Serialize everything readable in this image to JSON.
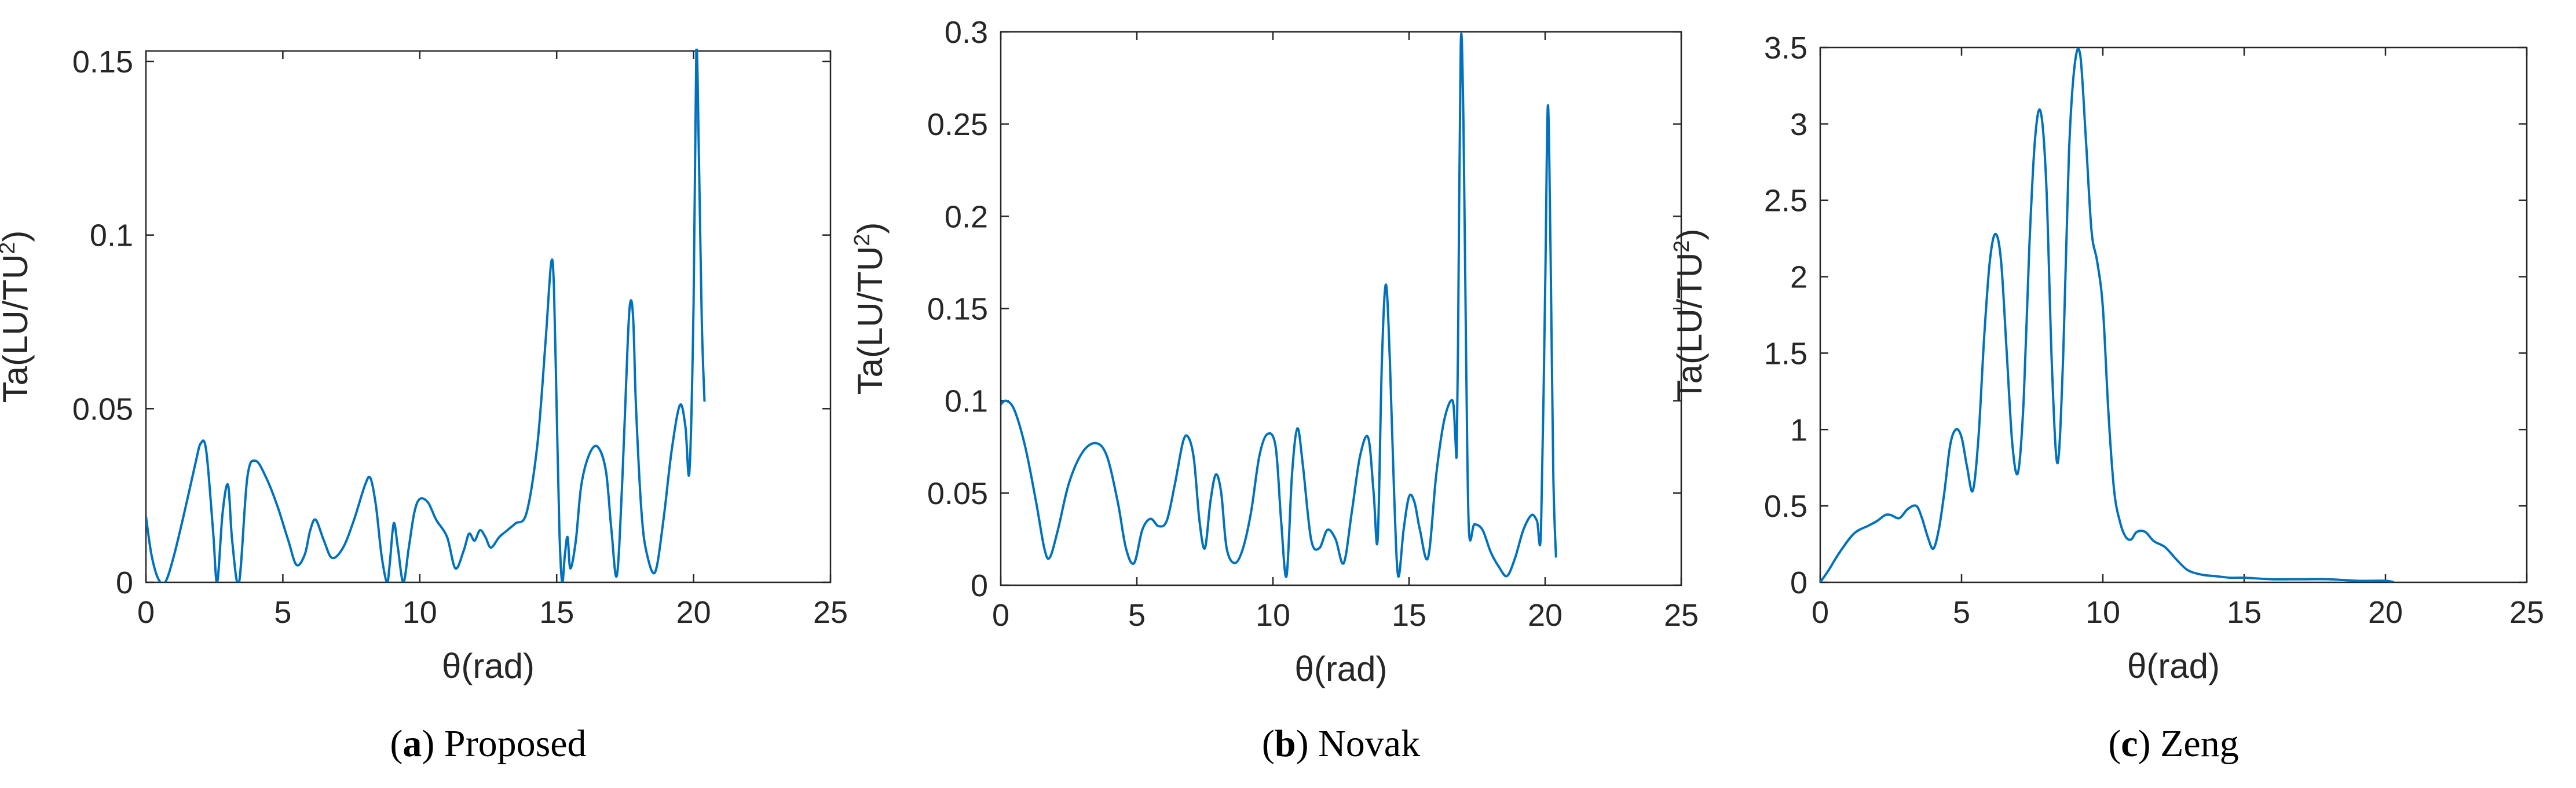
{
  "colors": {
    "line": "#0072BD",
    "axis": "#262626",
    "background": "#ffffff"
  },
  "chart_data": [
    {
      "type": "line",
      "panel": "a",
      "caption_label": "a",
      "caption_text": "Proposed",
      "xlabel": "θ(rad)",
      "ylabel_main": "Ta(LU/TU",
      "ylabel_sup": "2",
      "ylabel_end": ")",
      "xlim": [
        0,
        25
      ],
      "ylim": [
        0,
        0.153
      ],
      "xticks": [
        0,
        5,
        10,
        15,
        20,
        25
      ],
      "xtick_labels": [
        "0",
        "5",
        "10",
        "15",
        "20",
        "25"
      ],
      "yticks": [
        0,
        0.05,
        0.1,
        0.15
      ],
      "ytick_labels": [
        "0",
        "0.05",
        "0.1",
        "0.15"
      ],
      "grid": false,
      "series": [
        {
          "x": [
            0,
            0.2,
            0.45,
            0.7,
            1.0,
            1.4,
            1.8,
            2.0,
            2.2,
            2.45,
            2.6,
            2.8,
            3.0,
            3.15,
            3.4,
            3.7,
            4.0,
            4.4,
            4.8,
            5.2,
            5.5,
            5.8,
            6.0,
            6.2,
            6.5,
            6.8,
            7.2,
            7.6,
            8.0,
            8.2,
            8.4,
            8.6,
            8.8,
            8.9,
            9.05,
            9.2,
            9.4,
            9.6,
            9.8,
            10.0,
            10.3,
            10.6,
            11.0,
            11.3,
            11.6,
            11.8,
            12.0,
            12.2,
            12.4,
            12.6,
            12.9,
            13.2,
            13.5,
            13.9,
            14.3,
            14.6,
            14.8,
            14.9,
            15.0,
            15.1,
            15.2,
            15.3,
            15.4,
            15.5,
            15.7,
            15.9,
            16.2,
            16.5,
            16.8,
            17.0,
            17.2,
            17.4,
            17.6,
            17.7,
            17.8,
            17.9,
            18.1,
            18.3,
            18.6,
            18.9,
            19.2,
            19.5,
            19.7,
            19.85,
            20.0,
            20.1,
            20.2,
            20.3,
            20.4
          ],
          "y": [
            0.019,
            0.008,
            0.001,
            0.0,
            0.007,
            0.02,
            0.034,
            0.04,
            0.038,
            0.015,
            0.0,
            0.02,
            0.028,
            0.012,
            0.0,
            0.03,
            0.035,
            0.03,
            0.022,
            0.012,
            0.005,
            0.008,
            0.015,
            0.018,
            0.012,
            0.007,
            0.01,
            0.018,
            0.028,
            0.03,
            0.022,
            0.008,
            0.0,
            0.005,
            0.017,
            0.01,
            0.0,
            0.01,
            0.02,
            0.024,
            0.023,
            0.018,
            0.013,
            0.004,
            0.009,
            0.014,
            0.012,
            0.015,
            0.013,
            0.01,
            0.013,
            0.015,
            0.017,
            0.02,
            0.04,
            0.07,
            0.092,
            0.085,
            0.05,
            0.015,
            0.0,
            0.008,
            0.013,
            0.004,
            0.012,
            0.028,
            0.037,
            0.039,
            0.032,
            0.015,
            0.002,
            0.03,
            0.07,
            0.081,
            0.075,
            0.05,
            0.02,
            0.008,
            0.003,
            0.018,
            0.038,
            0.051,
            0.045,
            0.032,
            0.08,
            0.153,
            0.12,
            0.075,
            0.052
          ]
        }
      ]
    },
    {
      "type": "line",
      "panel": "b",
      "caption_label": "b",
      "caption_text": "Novak",
      "xlabel": "θ(rad)",
      "ylabel_main": "Ta(LU/TU",
      "ylabel_sup": "2",
      "ylabel_end": ")",
      "xlim": [
        0,
        25
      ],
      "ylim": [
        0,
        0.3
      ],
      "xticks": [
        0,
        5,
        10,
        15,
        20,
        25
      ],
      "xtick_labels": [
        "0",
        "5",
        "10",
        "15",
        "20",
        "25"
      ],
      "yticks": [
        0,
        0.05,
        0.1,
        0.15,
        0.2,
        0.25,
        0.3
      ],
      "ytick_labels": [
        "0",
        "0.05",
        "0.1",
        "0.15",
        "0.2",
        "0.25",
        "0.3"
      ],
      "grid": false,
      "series": [
        {
          "x": [
            0,
            0.2,
            0.5,
            0.9,
            1.3,
            1.6,
            1.8,
            2.1,
            2.5,
            3.0,
            3.5,
            3.9,
            4.3,
            4.6,
            4.9,
            5.2,
            5.5,
            5.8,
            6.1,
            6.4,
            6.7,
            6.9,
            7.1,
            7.3,
            7.5,
            7.7,
            7.9,
            8.1,
            8.3,
            8.6,
            8.9,
            9.2,
            9.5,
            9.8,
            10.1,
            10.3,
            10.5,
            10.7,
            10.9,
            11.1,
            11.4,
            11.7,
            12.0,
            12.3,
            12.6,
            12.9,
            13.2,
            13.5,
            13.7,
            13.85,
            14.0,
            14.15,
            14.3,
            14.45,
            14.6,
            14.8,
            15.0,
            15.2,
            15.4,
            15.7,
            16.0,
            16.3,
            16.6,
            16.7,
            16.75,
            16.8,
            16.9,
            17.0,
            17.1,
            17.2,
            17.4,
            17.7,
            18.0,
            18.3,
            18.6,
            18.9,
            19.2,
            19.5,
            19.7,
            19.85,
            20.0,
            20.1,
            20.2,
            20.3,
            20.4
          ],
          "y": [
            0.098,
            0.1,
            0.095,
            0.075,
            0.045,
            0.02,
            0.015,
            0.03,
            0.055,
            0.072,
            0.077,
            0.07,
            0.045,
            0.02,
            0.012,
            0.03,
            0.036,
            0.032,
            0.035,
            0.055,
            0.078,
            0.08,
            0.068,
            0.035,
            0.02,
            0.045,
            0.06,
            0.05,
            0.02,
            0.012,
            0.02,
            0.04,
            0.07,
            0.082,
            0.075,
            0.035,
            0.005,
            0.06,
            0.085,
            0.065,
            0.025,
            0.02,
            0.03,
            0.025,
            0.012,
            0.04,
            0.07,
            0.08,
            0.05,
            0.025,
            0.12,
            0.163,
            0.12,
            0.05,
            0.005,
            0.03,
            0.048,
            0.045,
            0.03,
            0.015,
            0.06,
            0.09,
            0.1,
            0.08,
            0.072,
            0.13,
            0.293,
            0.25,
            0.12,
            0.03,
            0.033,
            0.03,
            0.018,
            0.01,
            0.005,
            0.015,
            0.03,
            0.038,
            0.035,
            0.03,
            0.16,
            0.26,
            0.18,
            0.06,
            0.015
          ]
        }
      ]
    },
    {
      "type": "line",
      "panel": "c",
      "caption_label": "c",
      "caption_text": "Zeng",
      "xlabel": "θ(rad)",
      "ylabel_main": "Ta(LU/TU",
      "ylabel_sup": "2",
      "ylabel_end": ")",
      "xlim": [
        0,
        25
      ],
      "ylim": [
        0,
        3.5
      ],
      "xticks": [
        0,
        5,
        10,
        15,
        20,
        25
      ],
      "xtick_labels": [
        "0",
        "5",
        "10",
        "15",
        "20",
        "25"
      ],
      "yticks": [
        0,
        0.5,
        1,
        1.5,
        2,
        2.5,
        3,
        3.5
      ],
      "ytick_labels": [
        "0",
        "0.5",
        "1",
        "1.5",
        "2",
        "2.5",
        "3",
        "3.5"
      ],
      "grid": false,
      "series": [
        {
          "x": [
            0,
            0.3,
            0.7,
            1.2,
            1.7,
            2.0,
            2.3,
            2.5,
            2.8,
            3.1,
            3.4,
            3.6,
            3.8,
            4.0,
            4.2,
            4.4,
            4.6,
            4.8,
            5.0,
            5.2,
            5.4,
            5.6,
            5.8,
            6.0,
            6.2,
            6.4,
            6.6,
            6.8,
            7.0,
            7.2,
            7.4,
            7.6,
            7.8,
            8.0,
            8.2,
            8.4,
            8.6,
            8.8,
            9.0,
            9.2,
            9.4,
            9.6,
            9.8,
            10.0,
            10.2,
            10.4,
            10.6,
            10.8,
            11.0,
            11.2,
            11.5,
            11.8,
            12.2,
            12.6,
            13.0,
            13.5,
            14.0,
            14.5,
            15.0,
            16.0,
            17.0,
            18.0,
            19.0,
            20.0,
            20.3
          ],
          "y": [
            0.0,
            0.08,
            0.2,
            0.32,
            0.37,
            0.4,
            0.44,
            0.44,
            0.42,
            0.48,
            0.5,
            0.42,
            0.3,
            0.22,
            0.35,
            0.6,
            0.9,
            1.0,
            0.95,
            0.75,
            0.6,
            0.95,
            1.6,
            2.1,
            2.28,
            2.1,
            1.5,
            0.9,
            0.72,
            1.2,
            2.2,
            2.9,
            3.08,
            2.6,
            1.4,
            0.78,
            1.5,
            2.8,
            3.38,
            3.45,
            2.9,
            2.3,
            2.1,
            1.8,
            1.1,
            0.6,
            0.4,
            0.3,
            0.28,
            0.33,
            0.33,
            0.27,
            0.23,
            0.15,
            0.08,
            0.05,
            0.04,
            0.03,
            0.03,
            0.02,
            0.02,
            0.02,
            0.01,
            0.01,
            0.0
          ]
        }
      ]
    }
  ]
}
